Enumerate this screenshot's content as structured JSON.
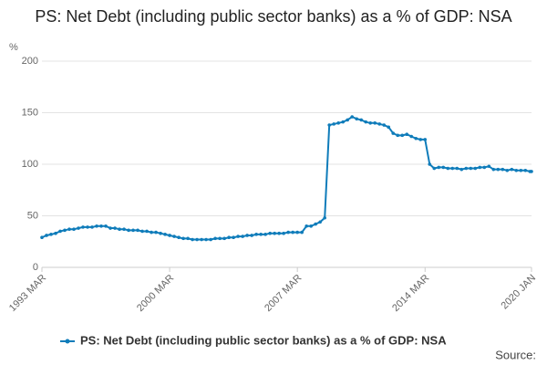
{
  "chart_data": {
    "type": "line",
    "title": "PS: Net Debt (including public sector banks) as a % of GDP: NSA",
    "y_label": "%",
    "source": "Source:",
    "x": [
      "1993 MAR",
      "1993 JUN",
      "1993 SEP",
      "1993 DEC",
      "1994 MAR",
      "1994 JUN",
      "1994 SEP",
      "1994 DEC",
      "1995 MAR",
      "1995 JUN",
      "1995 SEP",
      "1995 DEC",
      "1996 MAR",
      "1996 JUN",
      "1996 SEP",
      "1996 DEC",
      "1997 MAR",
      "1997 JUN",
      "1997 SEP",
      "1997 DEC",
      "1998 MAR",
      "1998 JUN",
      "1998 SEP",
      "1998 DEC",
      "1999 MAR",
      "1999 JUN",
      "1999 SEP",
      "1999 DEC",
      "2000 MAR",
      "2000 JUN",
      "2000 SEP",
      "2000 DEC",
      "2001 MAR",
      "2001 JUN",
      "2001 SEP",
      "2001 DEC",
      "2002 MAR",
      "2002 JUN",
      "2002 SEP",
      "2002 DEC",
      "2003 MAR",
      "2003 JUN",
      "2003 SEP",
      "2003 DEC",
      "2004 MAR",
      "2004 JUN",
      "2004 SEP",
      "2004 DEC",
      "2005 MAR",
      "2005 JUN",
      "2005 SEP",
      "2005 DEC",
      "2006 MAR",
      "2006 JUN",
      "2006 SEP",
      "2006 DEC",
      "2007 MAR",
      "2007 JUN",
      "2007 SEP",
      "2007 DEC",
      "2008 MAR",
      "2008 JUN",
      "2008 SEP",
      "2008 DEC",
      "2009 MAR",
      "2009 JUN",
      "2009 SEP",
      "2009 DEC",
      "2010 MAR",
      "2010 JUN",
      "2010 SEP",
      "2010 DEC",
      "2011 MAR",
      "2011 JUN",
      "2011 SEP",
      "2011 DEC",
      "2012 MAR",
      "2012 JUN",
      "2012 SEP",
      "2012 DEC",
      "2013 MAR",
      "2013 JUN",
      "2013 SEP",
      "2013 DEC",
      "2014 MAR",
      "2014 JUN",
      "2014 SEP",
      "2014 DEC",
      "2015 MAR",
      "2015 JUN",
      "2015 SEP",
      "2015 DEC",
      "2016 MAR",
      "2016 JUN",
      "2016 SEP",
      "2016 DEC",
      "2017 MAR",
      "2017 JUN",
      "2017 SEP",
      "2017 DEC",
      "2018 MAR",
      "2018 JUN",
      "2018 SEP",
      "2018 DEC",
      "2019 MAR",
      "2019 JUN",
      "2019 SEP",
      "2019 DEC",
      "2020 JAN"
    ],
    "series": [
      {
        "name": "PS: Net Debt (including public sector banks) as a % of GDP: NSA",
        "color": "#0f7cba",
        "values": [
          29,
          31,
          32,
          33,
          35,
          36,
          37,
          37,
          38,
          39,
          39,
          39,
          40,
          40,
          40,
          38,
          38,
          37,
          37,
          36,
          36,
          36,
          35,
          35,
          34,
          34,
          33,
          32,
          31,
          30,
          29,
          28,
          28,
          27,
          27,
          27,
          27,
          27,
          28,
          28,
          28,
          29,
          29,
          30,
          30,
          31,
          31,
          32,
          32,
          32,
          33,
          33,
          33,
          33,
          34,
          34,
          34,
          34,
          40,
          40,
          42,
          44,
          48,
          138,
          139,
          140,
          141,
          143,
          146,
          144,
          143,
          141,
          140,
          140,
          139,
          138,
          136,
          130,
          128,
          128,
          129,
          127,
          125,
          124,
          124,
          100,
          96,
          97,
          97,
          96,
          96,
          96,
          95,
          96,
          96,
          96,
          97,
          97,
          98,
          95,
          95,
          95,
          94,
          95,
          94,
          94,
          94,
          93,
          93
        ]
      }
    ],
    "xticks": [
      "1993 MAR",
      "2000 MAR",
      "2007 MAR",
      "2014 MAR",
      "2020 JAN"
    ],
    "ylim": [
      0,
      200
    ],
    "yticks": [
      0,
      50,
      100,
      150,
      200
    ],
    "grid": true,
    "legend": "bottom"
  }
}
